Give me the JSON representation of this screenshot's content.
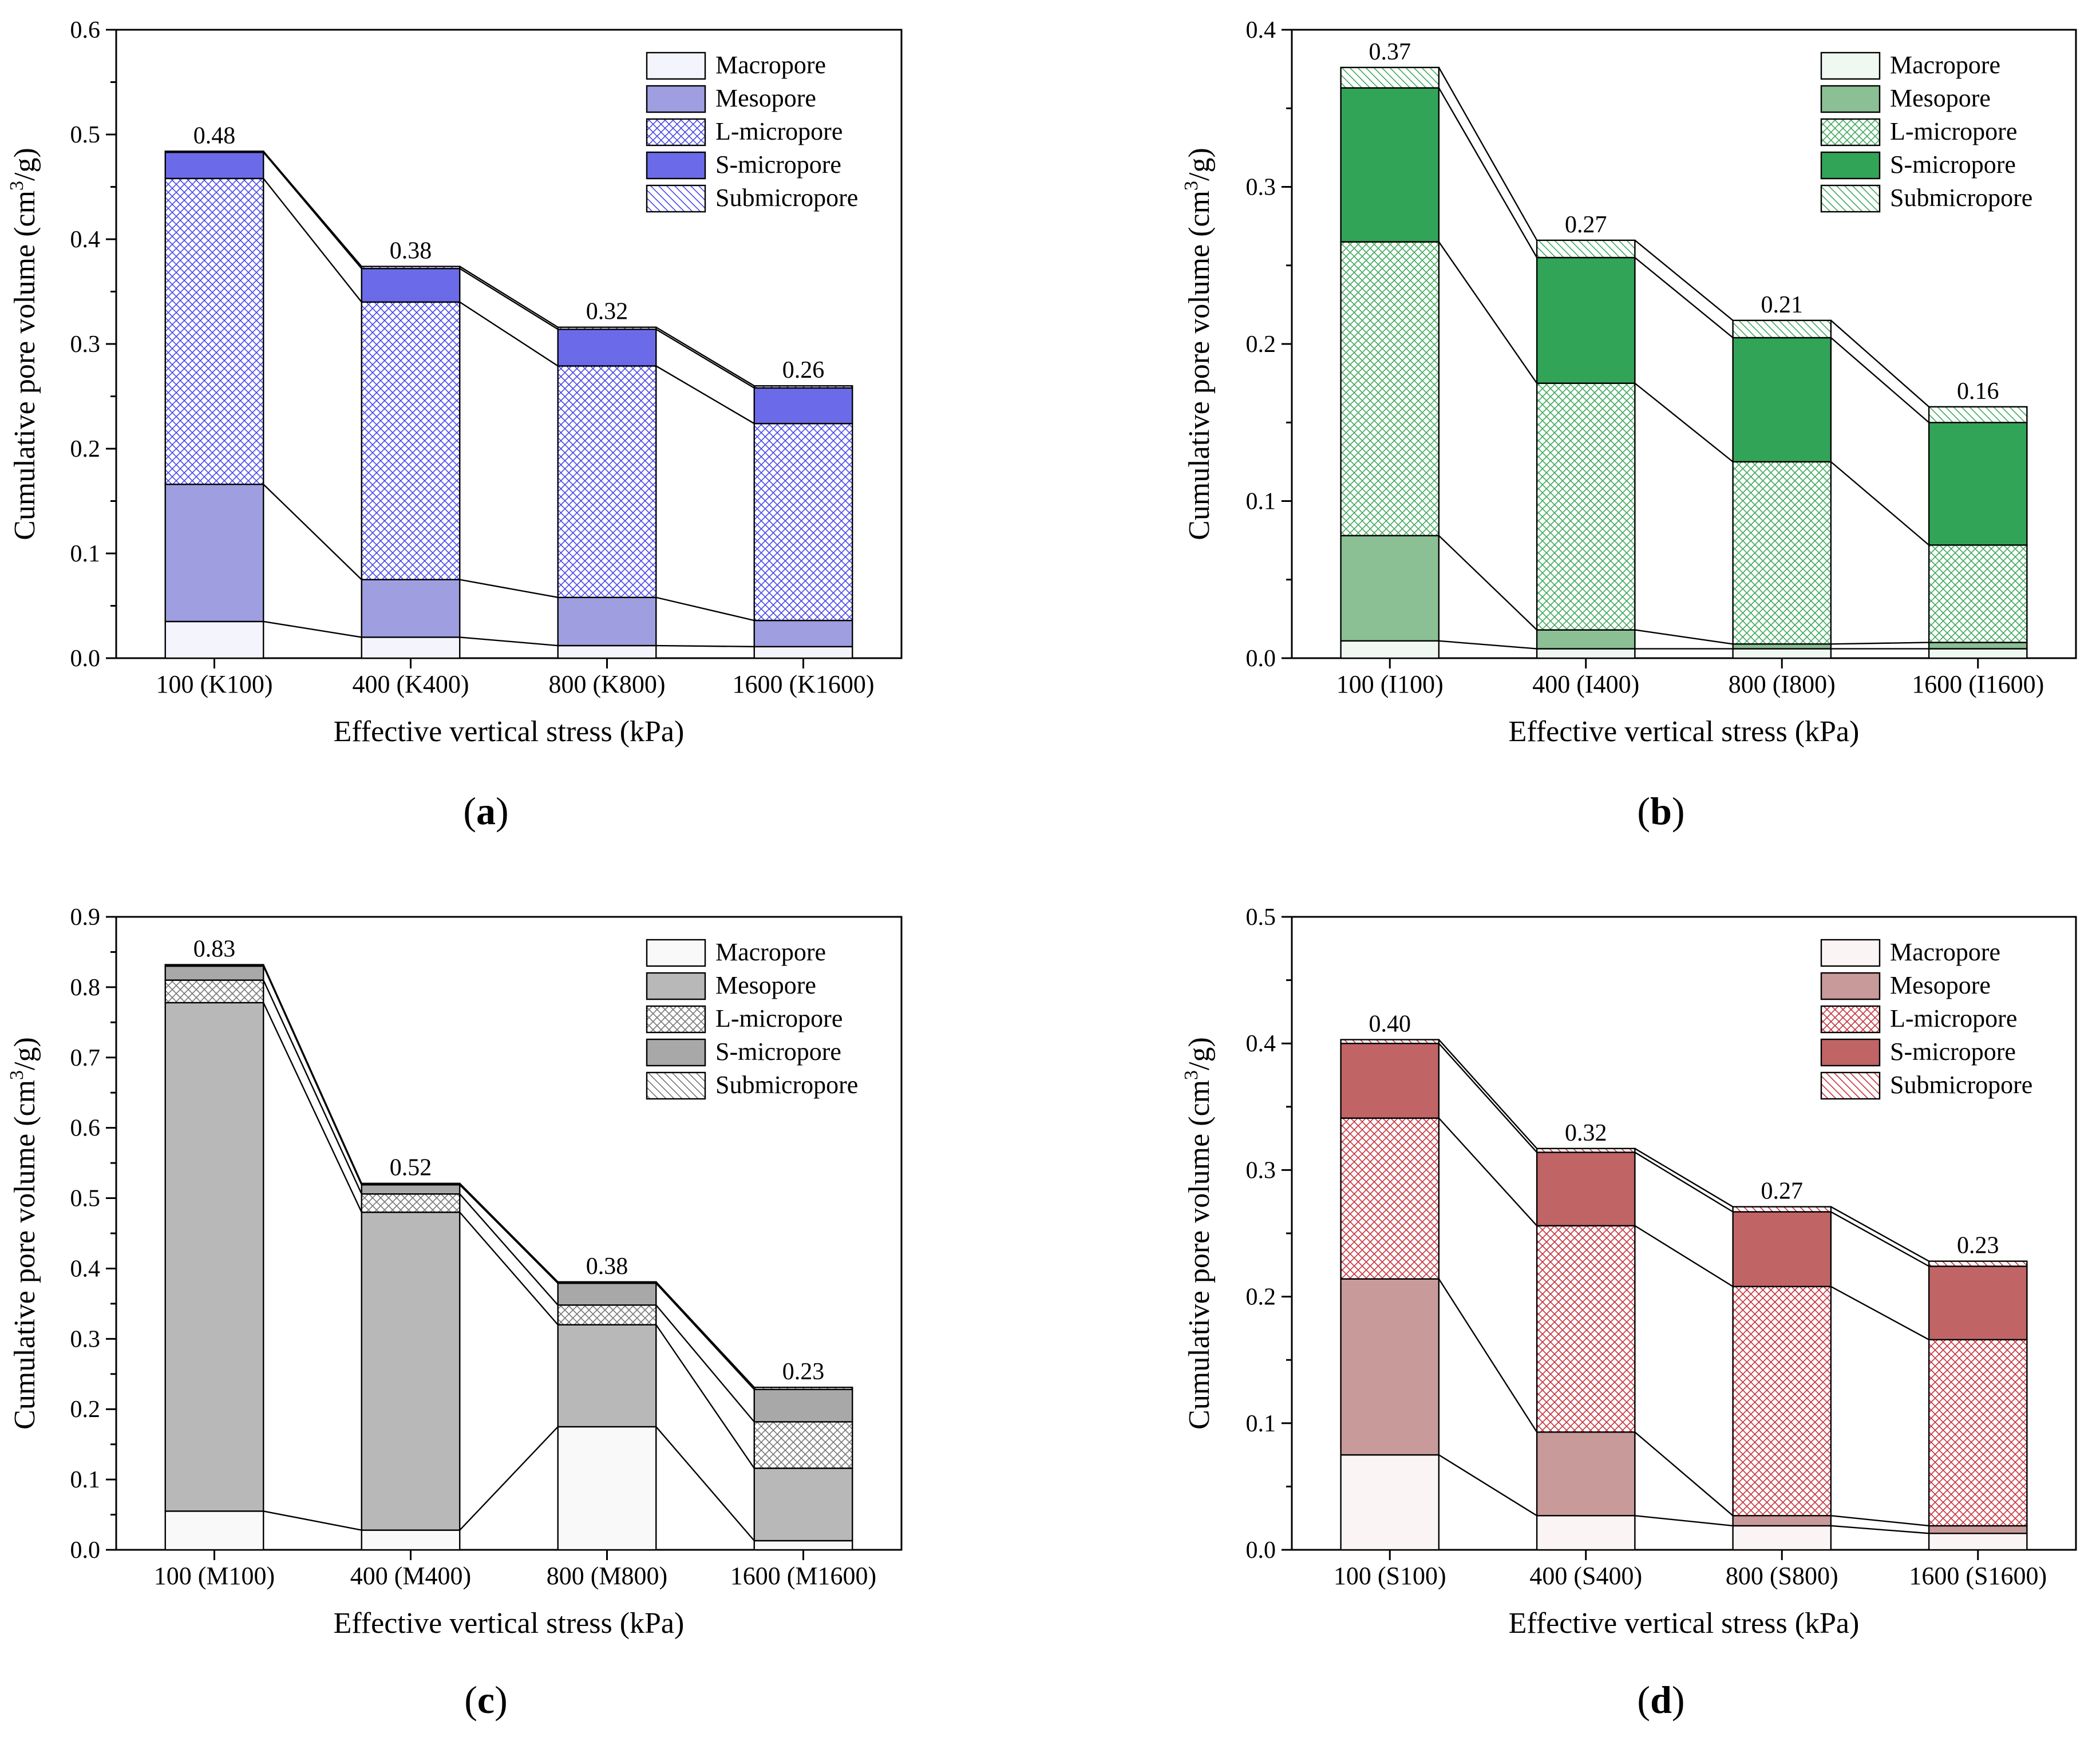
{
  "chart_data": [
    {
      "id": "a",
      "type": "bar",
      "stacked": true,
      "panel_label": "(a)",
      "panel_letter": "a",
      "xlabel": "Effective vertical stress (kPa)",
      "ylabel": "Cumulative pore volume (cm3/g)",
      "ylabel_main": "Cumulative pore volume (cm",
      "ylabel_sup": "3",
      "ylabel_end": "/g)",
      "ylim": [
        0,
        0.6
      ],
      "yticks": [
        "0.0",
        "0.1",
        "0.2",
        "0.3",
        "0.4",
        "0.5",
        "0.6"
      ],
      "categories": [
        "100 (K100)",
        "400 (K400)",
        "800 (K800)",
        "1600 (K1600)"
      ],
      "totals": [
        "0.48",
        "0.38",
        "0.32",
        "0.26"
      ],
      "legend_position": "top-right",
      "series": [
        {
          "name": "Macropore",
          "color": "#f4f4fc",
          "pattern": "solid",
          "values": [
            0.035,
            0.02,
            0.012,
            0.011
          ]
        },
        {
          "name": "Mesopore",
          "color": "#9e9ee0",
          "pattern": "solid",
          "values": [
            0.131,
            0.055,
            0.046,
            0.025
          ]
        },
        {
          "name": "L-micropore",
          "color": "#4848ea",
          "pattern": "crosshatch",
          "values": [
            0.292,
            0.265,
            0.221,
            0.188
          ]
        },
        {
          "name": "S-micropore",
          "color": "#6b6be9",
          "pattern": "solid",
          "values": [
            0.025,
            0.032,
            0.035,
            0.034
          ]
        },
        {
          "name": "Submicropore",
          "color": "#4848ea",
          "pattern": "diagonal",
          "values": [
            0.001,
            0.002,
            0.002,
            0.002
          ]
        }
      ]
    },
    {
      "id": "b",
      "type": "bar",
      "stacked": true,
      "panel_label": "(b)",
      "panel_letter": "b",
      "xlabel": "Effective vertical stress (kPa)",
      "ylabel": "Cumulative pore volume (cm3/g)",
      "ylabel_main": "Cumulative pore volume (cm",
      "ylabel_sup": "3",
      "ylabel_end": "/g)",
      "ylim": [
        0,
        0.4
      ],
      "yticks": [
        "0.0",
        "0.1",
        "0.2",
        "0.3",
        "0.4"
      ],
      "categories": [
        "100 (I100)",
        "400 (I400)",
        "800 (I800)",
        "1600 (I1600)"
      ],
      "totals": [
        "0.37",
        "0.27",
        "0.21",
        "0.16"
      ],
      "legend_position": "top-right",
      "series": [
        {
          "name": "Macropore",
          "color": "#f0f8f2",
          "pattern": "solid",
          "values": [
            0.011,
            0.006,
            0.006,
            0.006
          ]
        },
        {
          "name": "Mesopore",
          "color": "#8bbf94",
          "pattern": "solid",
          "values": [
            0.067,
            0.012,
            0.003,
            0.004
          ]
        },
        {
          "name": "L-micropore",
          "color": "#3fa95b",
          "pattern": "crosshatch",
          "values": [
            0.187,
            0.157,
            0.116,
            0.062
          ]
        },
        {
          "name": "S-micropore",
          "color": "#32a457",
          "pattern": "solid",
          "values": [
            0.098,
            0.08,
            0.079,
            0.078
          ]
        },
        {
          "name": "Submicropore",
          "color": "#3fa95b",
          "pattern": "diagonal",
          "values": [
            0.013,
            0.011,
            0.011,
            0.01
          ]
        }
      ]
    },
    {
      "id": "c",
      "type": "bar",
      "stacked": true,
      "panel_label": "(c)",
      "panel_letter": "c",
      "xlabel": "Effective vertical stress (kPa)",
      "ylabel": "Cumulative pore volume (cm3/g)",
      "ylabel_main": "Cumulative pore volume (cm",
      "ylabel_sup": "3",
      "ylabel_end": "/g)",
      "ylim": [
        0,
        0.9
      ],
      "yticks": [
        "0.0",
        "0.1",
        "0.2",
        "0.3",
        "0.4",
        "0.5",
        "0.6",
        "0.7",
        "0.8",
        "0.9"
      ],
      "categories": [
        "100 (M100)",
        "400 (M400)",
        "800 (M800)",
        "1600 (M1600)"
      ],
      "totals": [
        "0.83",
        "0.52",
        "0.38",
        "0.23"
      ],
      "legend_position": "top-right",
      "series": [
        {
          "name": "Macropore",
          "color": "#f9f9f9",
          "pattern": "solid",
          "values": [
            0.055,
            0.028,
            0.175,
            0.013
          ]
        },
        {
          "name": "Mesopore",
          "color": "#b8b8b8",
          "pattern": "solid",
          "values": [
            0.723,
            0.452,
            0.145,
            0.103
          ]
        },
        {
          "name": "L-micropore",
          "color": "#777777",
          "pattern": "crosshatch",
          "values": [
            0.032,
            0.026,
            0.028,
            0.066
          ]
        },
        {
          "name": "S-micropore",
          "color": "#a8a8a8",
          "pattern": "solid",
          "values": [
            0.02,
            0.013,
            0.031,
            0.046
          ]
        },
        {
          "name": "Submicropore",
          "color": "#777777",
          "pattern": "diagonal",
          "values": [
            0.002,
            0.002,
            0.002,
            0.003
          ]
        }
      ]
    },
    {
      "id": "d",
      "type": "bar",
      "stacked": true,
      "panel_label": "(d)",
      "panel_letter": "d",
      "xlabel": "Effective vertical stress (kPa)",
      "ylabel": "Cumulative pore volume (cm3/g)",
      "ylabel_main": "Cumulative pore volume (cm",
      "ylabel_sup": "3",
      "ylabel_end": "/g)",
      "ylim": [
        0,
        0.5
      ],
      "yticks": [
        "0.0",
        "0.1",
        "0.2",
        "0.3",
        "0.4",
        "0.5"
      ],
      "categories": [
        "100 (S100)",
        "400 (S400)",
        "800 (S800)",
        "1600 (S1600)"
      ],
      "totals": [
        "0.40",
        "0.32",
        "0.27",
        "0.23"
      ],
      "legend_position": "top-right",
      "series": [
        {
          "name": "Macropore",
          "color": "#faf4f4",
          "pattern": "solid",
          "values": [
            0.075,
            0.027,
            0.019,
            0.013
          ]
        },
        {
          "name": "Mesopore",
          "color": "#c99a9a",
          "pattern": "solid",
          "values": [
            0.139,
            0.066,
            0.008,
            0.006
          ]
        },
        {
          "name": "L-micropore",
          "color": "#c8303a",
          "pattern": "crosshatch",
          "values": [
            0.127,
            0.163,
            0.181,
            0.147
          ]
        },
        {
          "name": "S-micropore",
          "color": "#c06466",
          "pattern": "solid",
          "values": [
            0.059,
            0.058,
            0.059,
            0.058
          ]
        },
        {
          "name": "Submicropore",
          "color": "#c8303a",
          "pattern": "diagonal",
          "values": [
            0.003,
            0.003,
            0.004,
            0.004
          ]
        }
      ]
    }
  ]
}
